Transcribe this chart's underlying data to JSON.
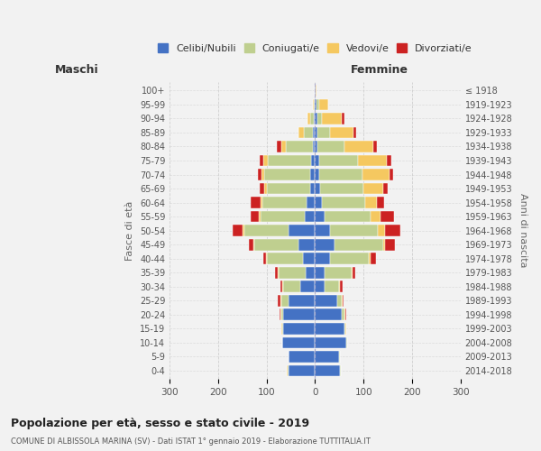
{
  "age_groups": [
    "0-4",
    "5-9",
    "10-14",
    "15-19",
    "20-24",
    "25-29",
    "30-34",
    "35-39",
    "40-44",
    "45-49",
    "50-54",
    "55-59",
    "60-64",
    "65-69",
    "70-74",
    "75-79",
    "80-84",
    "85-89",
    "90-94",
    "95-99",
    "100+"
  ],
  "birth_years": [
    "2014-2018",
    "2009-2013",
    "2004-2008",
    "1999-2003",
    "1994-1998",
    "1989-1993",
    "1984-1988",
    "1979-1983",
    "1974-1978",
    "1969-1973",
    "1964-1968",
    "1959-1963",
    "1954-1958",
    "1949-1953",
    "1944-1948",
    "1939-1943",
    "1934-1938",
    "1929-1933",
    "1924-1928",
    "1919-1923",
    "≤ 1918"
  ],
  "maschi": {
    "celibi": [
      55,
      55,
      68,
      65,
      65,
      55,
      30,
      20,
      25,
      35,
      55,
      22,
      18,
      10,
      10,
      8,
      5,
      4,
      3,
      1,
      1
    ],
    "coniugati": [
      2,
      0,
      0,
      2,
      5,
      15,
      35,
      55,
      75,
      90,
      90,
      90,
      90,
      90,
      95,
      90,
      55,
      20,
      8,
      2,
      0
    ],
    "vedovi": [
      2,
      0,
      0,
      2,
      2,
      2,
      2,
      2,
      2,
      2,
      5,
      5,
      5,
      5,
      5,
      8,
      10,
      10,
      5,
      2,
      0
    ],
    "divorziati": [
      0,
      0,
      0,
      0,
      2,
      5,
      5,
      5,
      5,
      10,
      20,
      15,
      20,
      10,
      8,
      8,
      8,
      0,
      0,
      0,
      0
    ]
  },
  "femmine": {
    "nubili": [
      52,
      50,
      65,
      60,
      55,
      45,
      20,
      20,
      30,
      40,
      30,
      20,
      15,
      10,
      8,
      8,
      5,
      5,
      5,
      3,
      1
    ],
    "coniugate": [
      2,
      2,
      2,
      2,
      5,
      10,
      30,
      55,
      80,
      100,
      100,
      95,
      88,
      90,
      90,
      80,
      55,
      25,
      10,
      5,
      0
    ],
    "vedove": [
      0,
      0,
      0,
      2,
      2,
      2,
      2,
      2,
      5,
      5,
      15,
      20,
      25,
      40,
      55,
      60,
      60,
      50,
      40,
      20,
      2
    ],
    "divorziate": [
      0,
      0,
      0,
      0,
      2,
      2,
      5,
      5,
      10,
      20,
      30,
      28,
      15,
      10,
      8,
      10,
      8,
      5,
      5,
      0,
      0
    ]
  },
  "colors": {
    "celibi_nubili": "#4472C4",
    "coniugati": "#BFCF8F",
    "vedovi": "#F5C860",
    "divorziati": "#CC2222"
  },
  "title": "Popolazione per età, sesso e stato civile - 2019",
  "subtitle": "COMUNE DI ALBISSOLA MARINA (SV) - Dati ISTAT 1° gennaio 2019 - Elaborazione TUTTITALIA.IT",
  "xlabel_left": "Maschi",
  "xlabel_right": "Femmine",
  "ylabel_left": "Fasce di età",
  "ylabel_right": "Anni di nascita",
  "xlim": 300,
  "background_color": "#f2f2f2",
  "bar_height": 0.82
}
